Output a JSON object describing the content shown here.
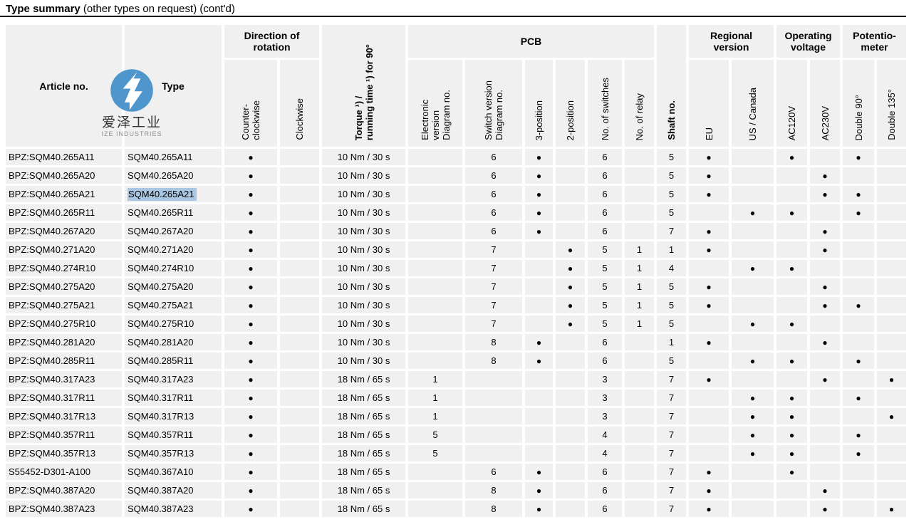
{
  "title": {
    "bold": "Type summary",
    "normal": " (other types on request) (cont'd)"
  },
  "logo": {
    "cjk": "爱泽工业",
    "sub": "IZE INDUSTRIES",
    "circle_color": "#4e96cc"
  },
  "colors": {
    "cell_bg": "#f0f0f0",
    "selection": "#a9c6e3",
    "logo_blue": "#4e96cc"
  },
  "header": {
    "article": "Article no.",
    "type": "Type",
    "groups": {
      "direction": "Direction of\nrotation",
      "pcb": "PCB",
      "regional": "Regional\nversion",
      "voltage": "Operating\nvoltage",
      "potentiometer": "Potentio-\nmeter"
    },
    "torque": "Torque ¹) /\nrunning time ¹) for 90°",
    "shaft": "Shaft no.",
    "ccw": "Counter-\nclockwise",
    "cw": "Clockwise",
    "elec": "Electronic\nversion\nDiagram no.",
    "sw": "Switch version\nDiagram no.",
    "p3": "3-position",
    "p2": "2-position",
    "nsw": "No. of switches",
    "relay": "No. of relay",
    "eu": "EU",
    "us": "US / Canada",
    "v120": "AC120V",
    "v230": "AC230V",
    "d90": "Double 90°",
    "d135": "Double 135°"
  },
  "rows": [
    {
      "article": "BPZ:SQM40.265A11",
      "type": "SQM40.265A11",
      "hl": false,
      "ccw": "●",
      "cw": "",
      "torque": "10 Nm / 30 s",
      "elec": "",
      "sw": "6",
      "p3": "●",
      "p2": "",
      "nsw": "6",
      "relay": "",
      "shaft": "5",
      "eu": "●",
      "us": "",
      "v120": "●",
      "v230": "",
      "d90": "●",
      "d135": ""
    },
    {
      "article": "BPZ:SQM40.265A20",
      "type": "SQM40.265A20",
      "hl": false,
      "ccw": "●",
      "cw": "",
      "torque": "10 Nm / 30 s",
      "elec": "",
      "sw": "6",
      "p3": "●",
      "p2": "",
      "nsw": "6",
      "relay": "",
      "shaft": "5",
      "eu": "●",
      "us": "",
      "v120": "",
      "v230": "●",
      "d90": "",
      "d135": ""
    },
    {
      "article": "BPZ:SQM40.265A21",
      "type": "SQM40.265A21",
      "hl": true,
      "ccw": "●",
      "cw": "",
      "torque": "10 Nm / 30 s",
      "elec": "",
      "sw": "6",
      "p3": "●",
      "p2": "",
      "nsw": "6",
      "relay": "",
      "shaft": "5",
      "eu": "●",
      "us": "",
      "v120": "",
      "v230": "●",
      "d90": "●",
      "d135": ""
    },
    {
      "article": "BPZ:SQM40.265R11",
      "type": "SQM40.265R11",
      "hl": false,
      "ccw": "●",
      "cw": "",
      "torque": "10 Nm / 30 s",
      "elec": "",
      "sw": "6",
      "p3": "●",
      "p2": "",
      "nsw": "6",
      "relay": "",
      "shaft": "5",
      "eu": "",
      "us": "●",
      "v120": "●",
      "v230": "",
      "d90": "●",
      "d135": ""
    },
    {
      "article": "BPZ:SQM40.267A20",
      "type": "SQM40.267A20",
      "hl": false,
      "ccw": "●",
      "cw": "",
      "torque": "10 Nm / 30 s",
      "elec": "",
      "sw": "6",
      "p3": "●",
      "p2": "",
      "nsw": "6",
      "relay": "",
      "shaft": "7",
      "eu": "●",
      "us": "",
      "v120": "",
      "v230": "●",
      "d90": "",
      "d135": ""
    },
    {
      "article": "BPZ:SQM40.271A20",
      "type": "SQM40.271A20",
      "hl": false,
      "ccw": "●",
      "cw": "",
      "torque": "10 Nm / 30 s",
      "elec": "",
      "sw": "7",
      "p3": "",
      "p2": "●",
      "nsw": "5",
      "relay": "1",
      "shaft": "1",
      "eu": "●",
      "us": "",
      "v120": "",
      "v230": "●",
      "d90": "",
      "d135": ""
    },
    {
      "article": "BPZ:SQM40.274R10",
      "type": "SQM40.274R10",
      "hl": false,
      "ccw": "●",
      "cw": "",
      "torque": "10 Nm / 30 s",
      "elec": "",
      "sw": "7",
      "p3": "",
      "p2": "●",
      "nsw": "5",
      "relay": "1",
      "shaft": "4",
      "eu": "",
      "us": "●",
      "v120": "●",
      "v230": "",
      "d90": "",
      "d135": ""
    },
    {
      "article": "BPZ:SQM40.275A20",
      "type": "SQM40.275A20",
      "hl": false,
      "ccw": "●",
      "cw": "",
      "torque": "10 Nm / 30 s",
      "elec": "",
      "sw": "7",
      "p3": "",
      "p2": "●",
      "nsw": "5",
      "relay": "1",
      "shaft": "5",
      "eu": "●",
      "us": "",
      "v120": "",
      "v230": "●",
      "d90": "",
      "d135": ""
    },
    {
      "article": "BPZ:SQM40.275A21",
      "type": "SQM40.275A21",
      "hl": false,
      "ccw": "●",
      "cw": "",
      "torque": "10 Nm / 30 s",
      "elec": "",
      "sw": "7",
      "p3": "",
      "p2": "●",
      "nsw": "5",
      "relay": "1",
      "shaft": "5",
      "eu": "●",
      "us": "",
      "v120": "",
      "v230": "●",
      "d90": "●",
      "d135": ""
    },
    {
      "article": "BPZ:SQM40.275R10",
      "type": "SQM40.275R10",
      "hl": false,
      "ccw": "●",
      "cw": "",
      "torque": "10 Nm / 30 s",
      "elec": "",
      "sw": "7",
      "p3": "",
      "p2": "●",
      "nsw": "5",
      "relay": "1",
      "shaft": "5",
      "eu": "",
      "us": "●",
      "v120": "●",
      "v230": "",
      "d90": "",
      "d135": ""
    },
    {
      "article": "BPZ:SQM40.281A20",
      "type": "SQM40.281A20",
      "hl": false,
      "ccw": "●",
      "cw": "",
      "torque": "10 Nm / 30 s",
      "elec": "",
      "sw": "8",
      "p3": "●",
      "p2": "",
      "nsw": "6",
      "relay": "",
      "shaft": "1",
      "eu": "●",
      "us": "",
      "v120": "",
      "v230": "●",
      "d90": "",
      "d135": ""
    },
    {
      "article": "BPZ:SQM40.285R11",
      "type": "SQM40.285R11",
      "hl": false,
      "ccw": "●",
      "cw": "",
      "torque": "10 Nm / 30 s",
      "elec": "",
      "sw": "8",
      "p3": "●",
      "p2": "",
      "nsw": "6",
      "relay": "",
      "shaft": "5",
      "eu": "",
      "us": "●",
      "v120": "●",
      "v230": "",
      "d90": "●",
      "d135": ""
    },
    {
      "article": "BPZ:SQM40.317A23",
      "type": "SQM40.317A23",
      "hl": false,
      "ccw": "●",
      "cw": "",
      "torque": "18 Nm / 65 s",
      "elec": "1",
      "sw": "",
      "p3": "",
      "p2": "",
      "nsw": "3",
      "relay": "",
      "shaft": "7",
      "eu": "●",
      "us": "",
      "v120": "",
      "v230": "●",
      "d90": "",
      "d135": "●"
    },
    {
      "article": "BPZ:SQM40.317R11",
      "type": "SQM40.317R11",
      "hl": false,
      "ccw": "●",
      "cw": "",
      "torque": "18 Nm / 65 s",
      "elec": "1",
      "sw": "",
      "p3": "",
      "p2": "",
      "nsw": "3",
      "relay": "",
      "shaft": "7",
      "eu": "",
      "us": "●",
      "v120": "●",
      "v230": "",
      "d90": "●",
      "d135": ""
    },
    {
      "article": "BPZ:SQM40.317R13",
      "type": "SQM40.317R13",
      "hl": false,
      "ccw": "●",
      "cw": "",
      "torque": "18 Nm / 65 s",
      "elec": "1",
      "sw": "",
      "p3": "",
      "p2": "",
      "nsw": "3",
      "relay": "",
      "shaft": "7",
      "eu": "",
      "us": "●",
      "v120": "●",
      "v230": "",
      "d90": "",
      "d135": "●"
    },
    {
      "article": "BPZ:SQM40.357R11",
      "type": "SQM40.357R11",
      "hl": false,
      "ccw": "●",
      "cw": "",
      "torque": "18 Nm / 65 s",
      "elec": "5",
      "sw": "",
      "p3": "",
      "p2": "",
      "nsw": "4",
      "relay": "",
      "shaft": "7",
      "eu": "",
      "us": "●",
      "v120": "●",
      "v230": "",
      "d90": "●",
      "d135": ""
    },
    {
      "article": "BPZ:SQM40.357R13",
      "type": "SQM40.357R13",
      "hl": false,
      "ccw": "●",
      "cw": "",
      "torque": "18 Nm / 65 s",
      "elec": "5",
      "sw": "",
      "p3": "",
      "p2": "",
      "nsw": "4",
      "relay": "",
      "shaft": "7",
      "eu": "",
      "us": "●",
      "v120": "●",
      "v230": "",
      "d90": "●",
      "d135": ""
    },
    {
      "article": "S55452-D301-A100",
      "type": "SQM40.367A10",
      "hl": false,
      "ccw": "●",
      "cw": "",
      "torque": "18 Nm / 65 s",
      "elec": "",
      "sw": "6",
      "p3": "●",
      "p2": "",
      "nsw": "6",
      "relay": "",
      "shaft": "7",
      "eu": "●",
      "us": "",
      "v120": "●",
      "v230": "",
      "d90": "",
      "d135": ""
    },
    {
      "article": "BPZ:SQM40.387A20",
      "type": "SQM40.387A20",
      "hl": false,
      "ccw": "●",
      "cw": "",
      "torque": "18 Nm / 65 s",
      "elec": "",
      "sw": "8",
      "p3": "●",
      "p2": "",
      "nsw": "6",
      "relay": "",
      "shaft": "7",
      "eu": "●",
      "us": "",
      "v120": "",
      "v230": "●",
      "d90": "",
      "d135": ""
    },
    {
      "article": "BPZ:SQM40.387A23",
      "type": "SQM40.387A23",
      "hl": false,
      "ccw": "●",
      "cw": "",
      "torque": "18 Nm / 65 s",
      "elec": "",
      "sw": "8",
      "p3": "●",
      "p2": "",
      "nsw": "6",
      "relay": "",
      "shaft": "7",
      "eu": "●",
      "us": "",
      "v120": "",
      "v230": "●",
      "d90": "",
      "d135": "●"
    }
  ]
}
